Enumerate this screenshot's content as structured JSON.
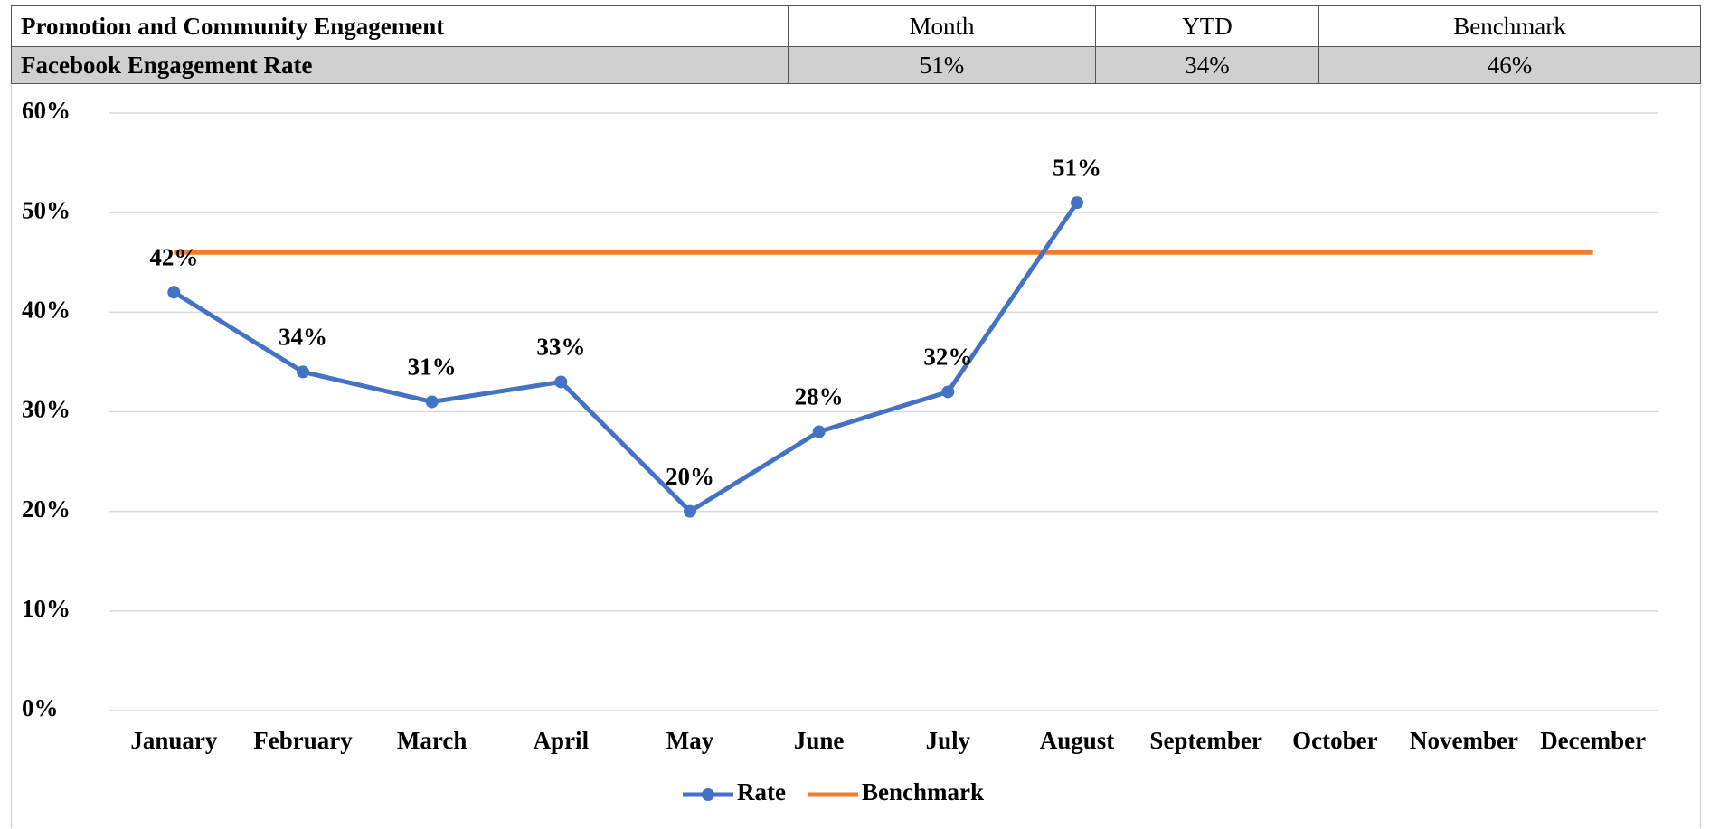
{
  "table": {
    "header": [
      "Promotion and Community Engagement",
      "Month",
      "YTD",
      "Benchmark"
    ],
    "rows": [
      [
        "Facebook Engagement Rate",
        "51%",
        "34%",
        "46%"
      ]
    ]
  },
  "chart_data": {
    "type": "line",
    "categories": [
      "January",
      "February",
      "March",
      "April",
      "May",
      "June",
      "July",
      "August",
      "September",
      "October",
      "November",
      "December"
    ],
    "series": [
      {
        "name": "Rate",
        "color": "#4472c4",
        "marker": "circle",
        "values": [
          42,
          34,
          31,
          33,
          20,
          28,
          32,
          51,
          null,
          null,
          null,
          null
        ],
        "value_labels": [
          "42%",
          "34%",
          "31%",
          "33%",
          "20%",
          "28%",
          "32%",
          "51%",
          null,
          null,
          null,
          null
        ]
      },
      {
        "name": "Benchmark",
        "color": "#ed7d31",
        "values": [
          46,
          46,
          46,
          46,
          46,
          46,
          46,
          46,
          46,
          46,
          46,
          46
        ]
      }
    ],
    "ylim": [
      0,
      60
    ],
    "yticks": [
      {
        "value": 0,
        "label": "0%"
      },
      {
        "value": 10,
        "label": "10%"
      },
      {
        "value": 20,
        "label": "20%"
      },
      {
        "value": 30,
        "label": "30%"
      },
      {
        "value": 40,
        "label": "40%"
      },
      {
        "value": 50,
        "label": "50%"
      },
      {
        "value": 60,
        "label": "60%"
      }
    ],
    "grid": true,
    "legend": "bottom"
  }
}
